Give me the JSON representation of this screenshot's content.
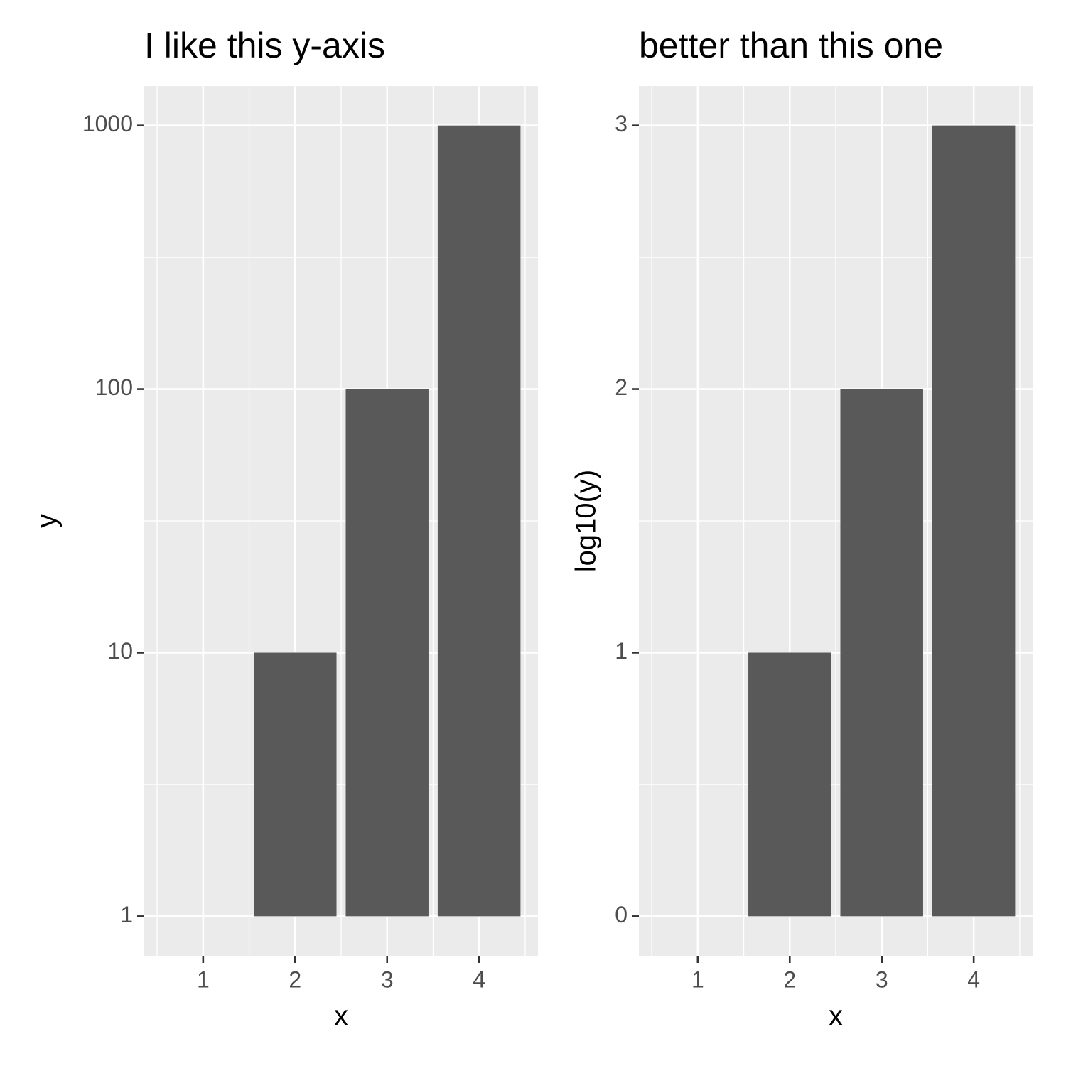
{
  "chart_data": [
    {
      "type": "bar",
      "title": "I like this y-axis",
      "x": [
        1,
        2,
        3,
        4
      ],
      "values": [
        1,
        10,
        100,
        1000
      ],
      "color": "#595959",
      "xlabel": "x",
      "ylabel": "y",
      "xlim": [
        0.36,
        4.64
      ],
      "xticks": [
        1,
        2,
        3,
        4
      ],
      "ylim": [
        0.708,
        1413
      ],
      "yticks": [
        1,
        10,
        100,
        1000
      ],
      "log_y": true,
      "grid": true
    },
    {
      "type": "bar",
      "title": "better than this one",
      "x": [
        1,
        2,
        3,
        4
      ],
      "values": [
        0,
        1,
        2,
        3
      ],
      "color": "#595959",
      "xlabel": "x",
      "ylabel": "log10(y)",
      "xlim": [
        0.36,
        4.64
      ],
      "xticks": [
        1,
        2,
        3,
        4
      ],
      "ylim": [
        -0.15,
        3.15
      ],
      "yticks": [
        0,
        1,
        2,
        3
      ],
      "log_y": false,
      "grid": true
    }
  ]
}
